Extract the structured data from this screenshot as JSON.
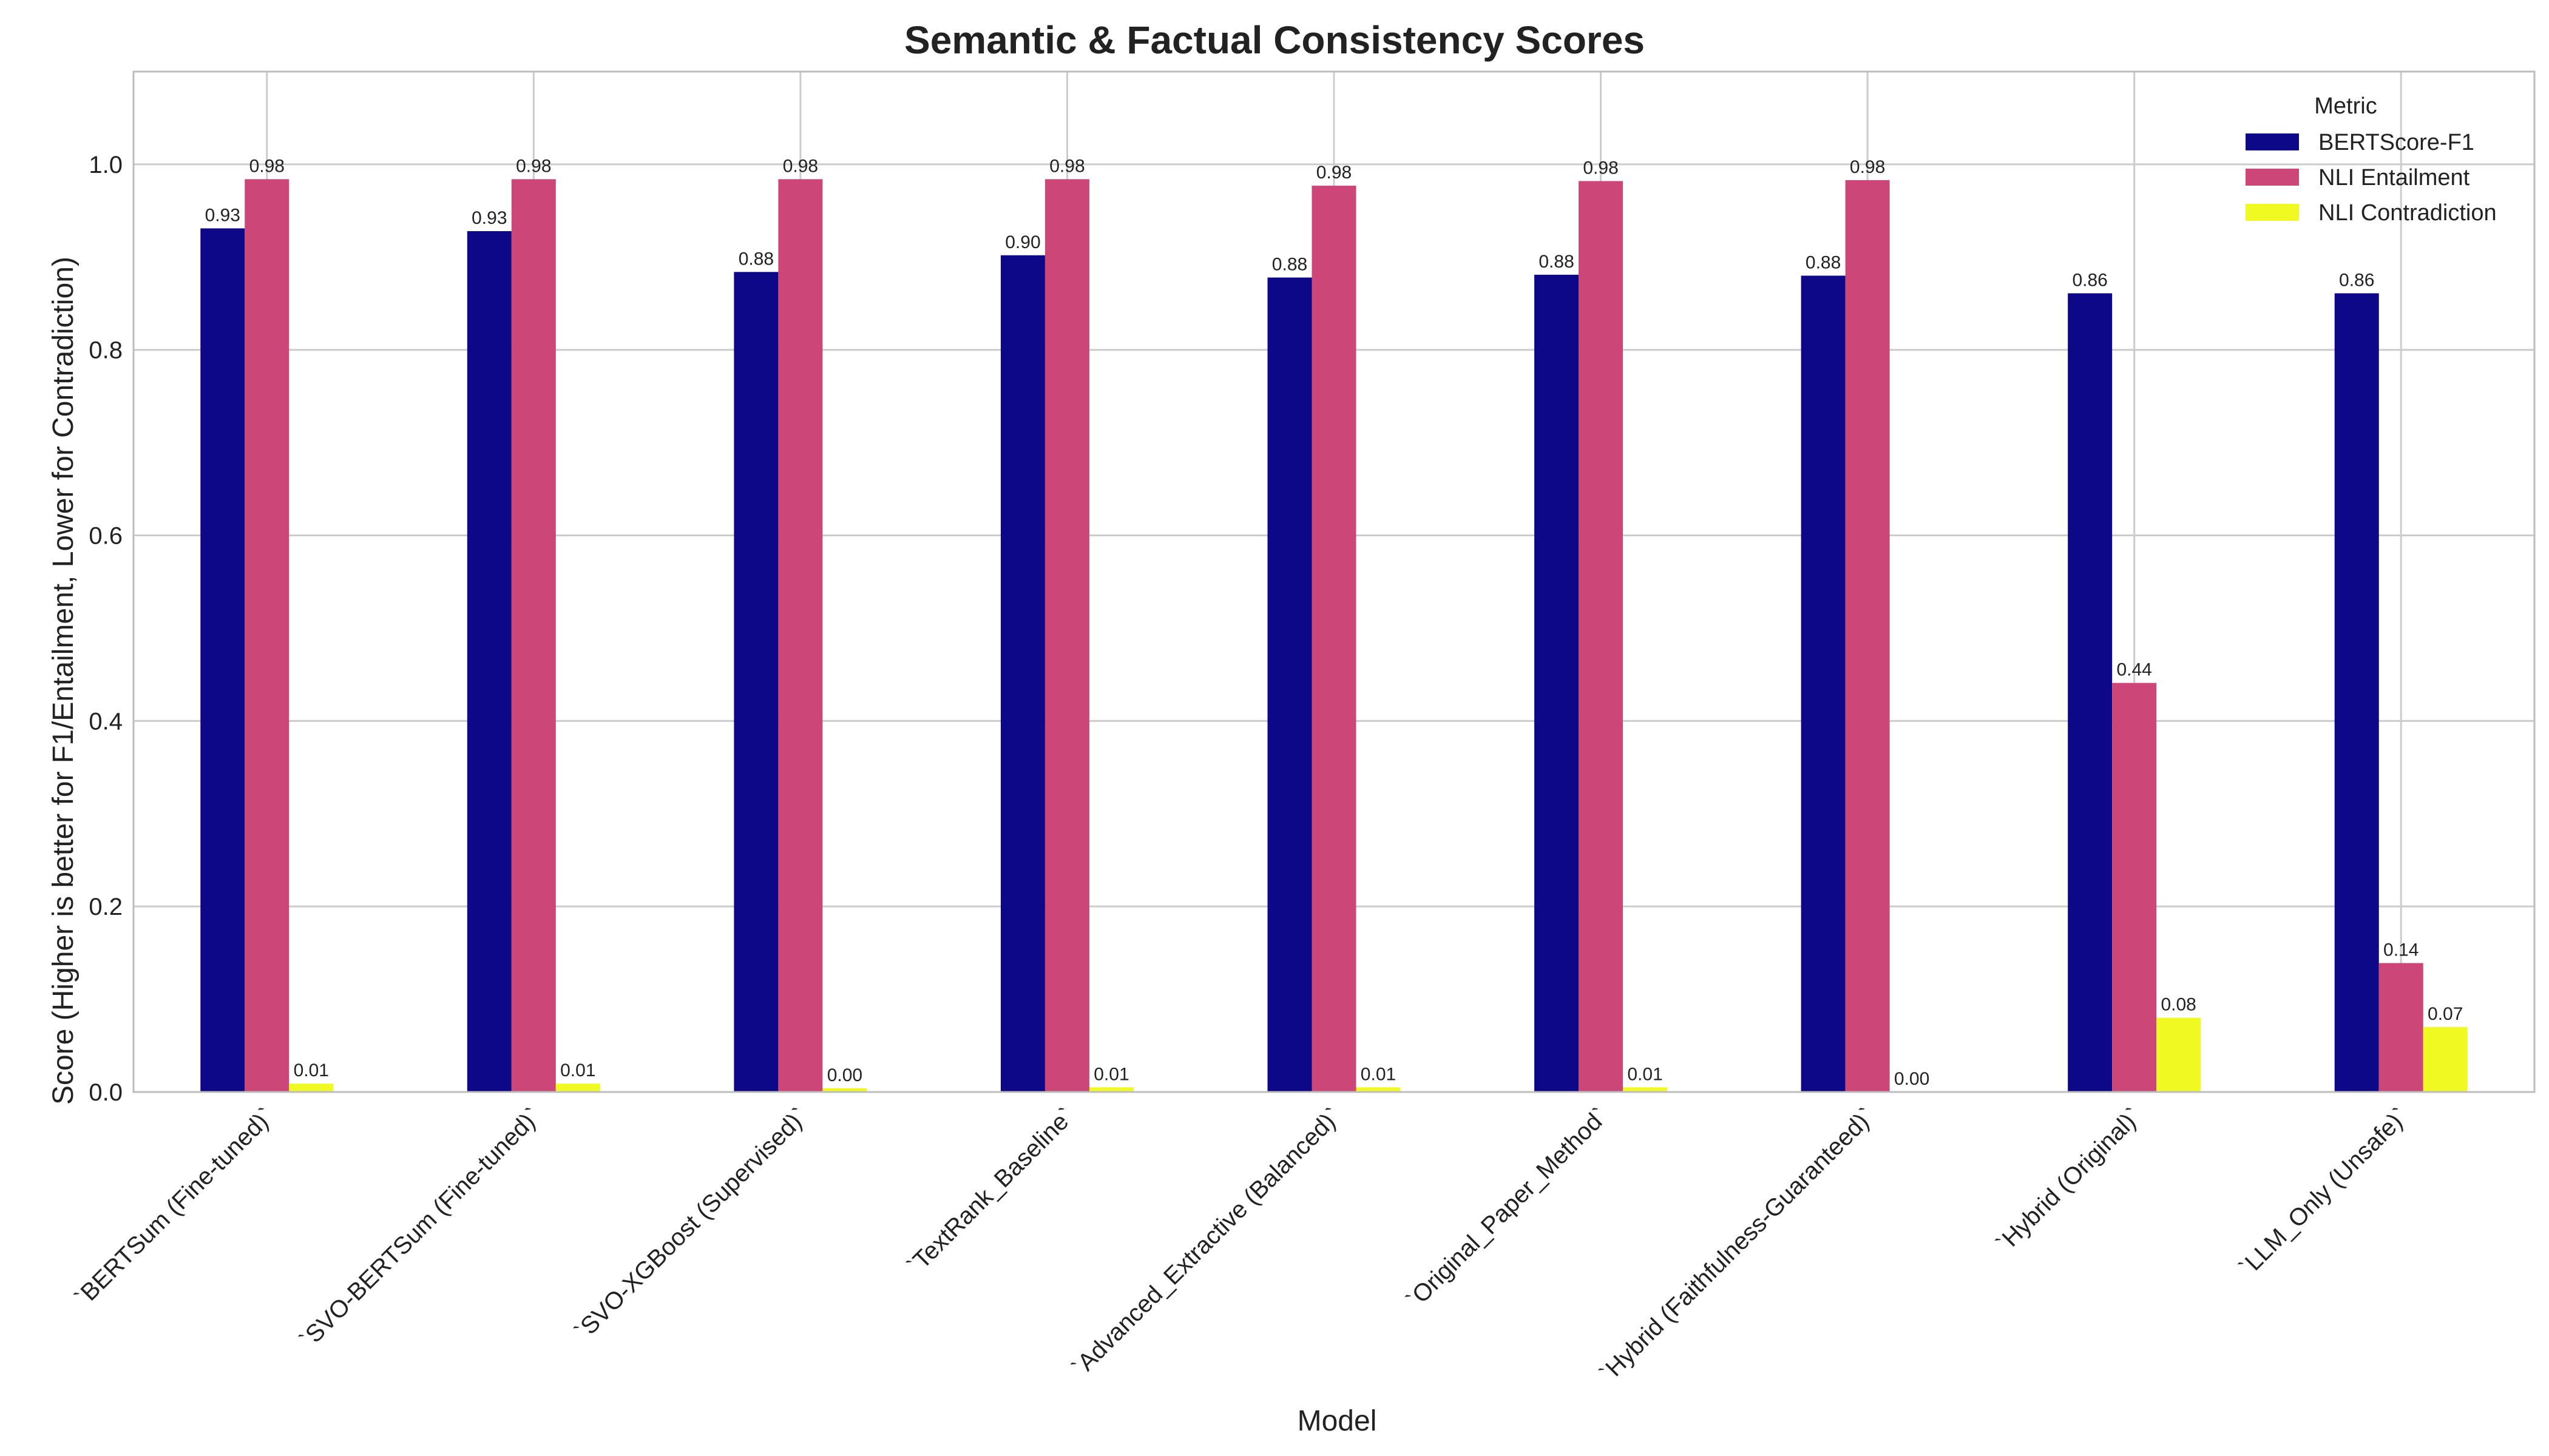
{
  "chart_data": {
    "type": "bar",
    "title": "Semantic & Factual Consistency Scores",
    "xlabel": "Model",
    "ylabel": "Score (Higher is better for F1/Entailment, Lower for Contradiction)",
    "ylim": [
      0,
      1.1
    ],
    "yticks": [
      "0.0",
      "0.2",
      "0.4",
      "0.6",
      "0.8",
      "1.0"
    ],
    "grid": true,
    "legend_title": "Metric",
    "legend_position": "top-right",
    "categories": [
      "`BERTSum (Fine-tuned)`",
      "`SVO-BERTSum (Fine-tuned)`",
      "`SVO-XGBoost (Supervised)`",
      "`TextRank_Baseline`",
      "`Advanced_Extractive (Balanced)`",
      "`Original_Paper_Method`",
      "`Hybrid (Faithfulness-Guaranteed)`",
      "`Hybrid (Original)`",
      "`LLM_Only (Unsafe)`"
    ],
    "series": [
      {
        "name": "BERTScore-F1",
        "color": "#0d0887",
        "values": [
          0.931,
          0.928,
          0.884,
          0.902,
          0.878,
          0.881,
          0.88,
          0.861,
          0.861
        ],
        "labels": [
          "0.93",
          "0.93",
          "0.88",
          "0.90",
          "0.88",
          "0.88",
          "0.88",
          "0.86",
          "0.86"
        ]
      },
      {
        "name": "NLI Entailment",
        "color": "#cc4778",
        "values": [
          0.984,
          0.984,
          0.984,
          0.984,
          0.977,
          0.982,
          0.983,
          0.441,
          0.139
        ],
        "labels": [
          "0.98",
          "0.98",
          "0.98",
          "0.98",
          "0.98",
          "0.98",
          "0.98",
          "0.44",
          "0.14"
        ]
      },
      {
        "name": "NLI Contradiction",
        "color": "#f0f921",
        "values": [
          0.009,
          0.009,
          0.004,
          0.005,
          0.005,
          0.005,
          0.0,
          0.08,
          0.07
        ],
        "labels": [
          "0.01",
          "0.01",
          "0.00",
          "0.01",
          "0.01",
          "0.01",
          "0.00",
          "0.08",
          "0.07"
        ]
      }
    ]
  }
}
